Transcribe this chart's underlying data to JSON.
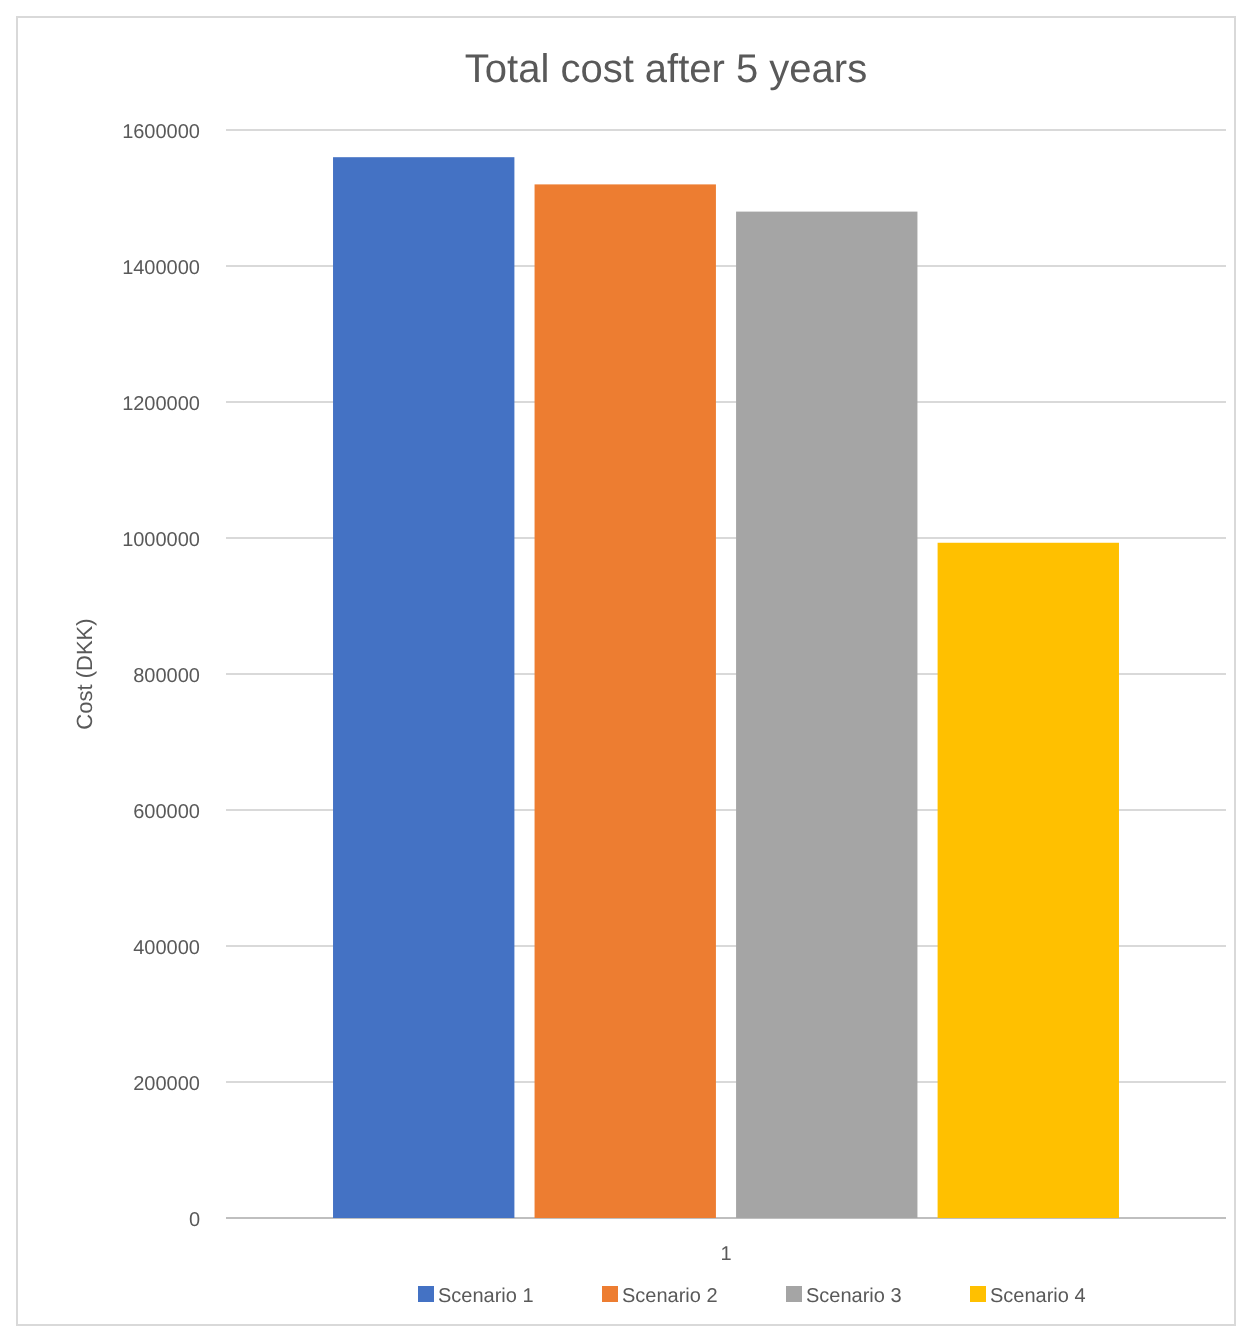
{
  "chart_data": {
    "type": "bar",
    "title": "Total cost after 5 years",
    "ylabel": "Cost (DKK)",
    "categories": [
      "1"
    ],
    "series": [
      {
        "name": "Scenario 1",
        "color": "#4472c4",
        "values": [
          1560000
        ]
      },
      {
        "name": "Scenario 2",
        "color": "#ed7d31",
        "values": [
          1520000
        ]
      },
      {
        "name": "Scenario 3",
        "color": "#a5a5a5",
        "values": [
          1480000
        ]
      },
      {
        "name": "Scenario 4",
        "color": "#ffc000",
        "values": [
          993000
        ]
      }
    ],
    "ylim": [
      0,
      1600000
    ],
    "yticks": [
      0,
      200000,
      400000,
      600000,
      800000,
      1000000,
      1200000,
      1400000,
      1600000
    ],
    "grid": "y",
    "legend": "bottom"
  }
}
